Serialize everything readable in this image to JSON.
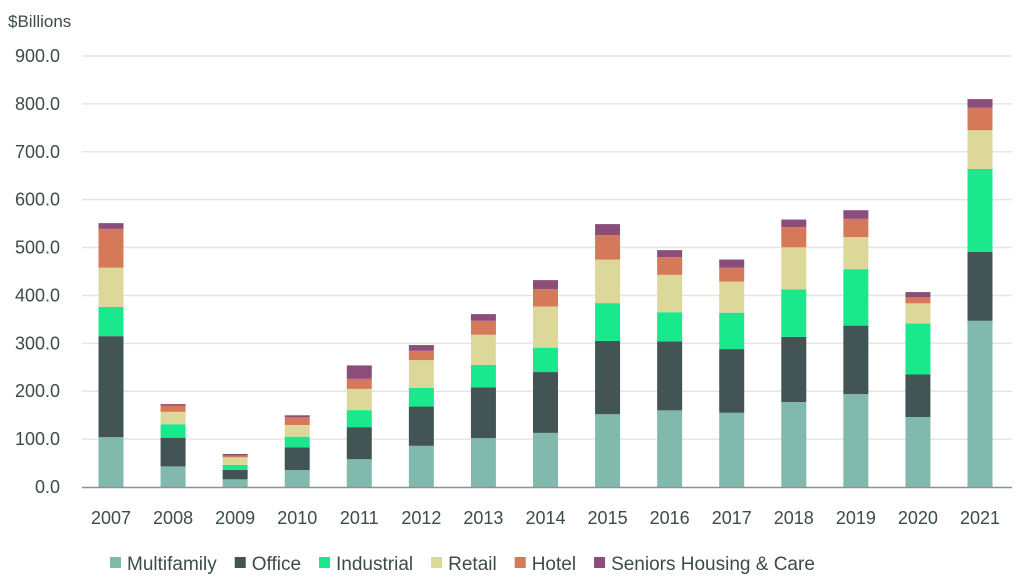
{
  "chart_data": {
    "type": "bar",
    "stacked": true,
    "title": "",
    "ylabel": "$Billions",
    "xlabel": "",
    "ylim": [
      0,
      900
    ],
    "yticks": [
      "0.0",
      "100.0",
      "200.0",
      "300.0",
      "400.0",
      "500.0",
      "600.0",
      "700.0",
      "800.0",
      "900.0"
    ],
    "grid": true,
    "legend_placement": "bottom",
    "categories": [
      "2007",
      "2008",
      "2009",
      "2010",
      "2011",
      "2012",
      "2013",
      "2014",
      "2015",
      "2016",
      "2017",
      "2018",
      "2019",
      "2020",
      "2021"
    ],
    "series": [
      {
        "name": "Multifamily",
        "color": "#82b9ad",
        "values": [
          104,
          43,
          16,
          35.5,
          58,
          86,
          102,
          113,
          152,
          160,
          155,
          177.5,
          194,
          146,
          347
        ]
      },
      {
        "name": "Office",
        "color": "#435455",
        "values": [
          211,
          60,
          20,
          47.4,
          67,
          82,
          106,
          127,
          153,
          144,
          133,
          136,
          143,
          89,
          144
        ]
      },
      {
        "name": "Industrial",
        "color": "#1ae88d",
        "values": [
          61,
          28,
          10,
          22.2,
          35.5,
          39,
          47,
          51,
          79,
          61,
          76,
          99,
          118,
          106.5,
          173
        ]
      },
      {
        "name": "Retail",
        "color": "#dcd89a",
        "values": [
          82,
          26,
          16,
          24.4,
          44.4,
          58,
          63,
          86,
          91,
          78,
          65,
          88,
          67,
          42,
          81
        ]
      },
      {
        "name": "Hotel",
        "color": "#d6795a",
        "values": [
          81,
          12.5,
          3.4,
          16,
          21,
          19.4,
          29,
          36,
          51,
          37,
          29,
          42,
          38,
          12.5,
          47
        ]
      },
      {
        "name": "Seniors Housing & Care",
        "color": "#8b4e78",
        "values": [
          12,
          3.6,
          3.5,
          4.2,
          28,
          12,
          14,
          19,
          23,
          14.6,
          17,
          16,
          18,
          11,
          18
        ]
      }
    ]
  }
}
